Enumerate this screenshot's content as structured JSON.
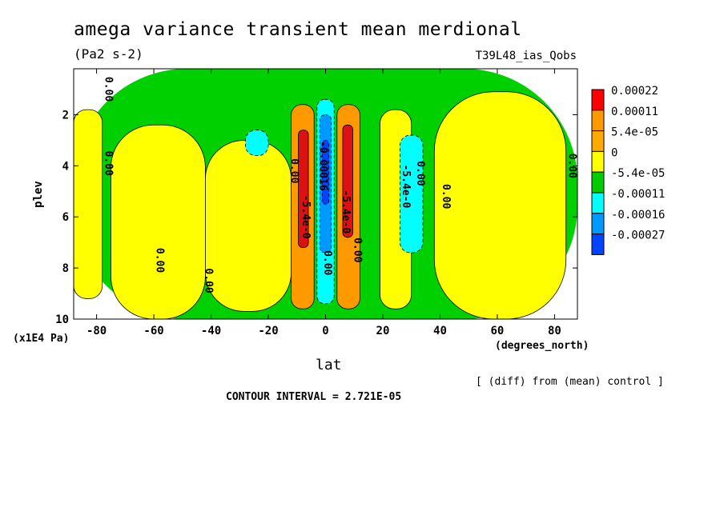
{
  "title": "amega variance transient mean merdional",
  "units": "(Pa2 s-2)",
  "run_label": "T39L48_ias_Qobs",
  "note": "[ (diff) from (mean) control ]",
  "contour_interval": "CONTOUR INTERVAL = 2.721E-05",
  "chart_data": {
    "type": "heatmap",
    "title": "amega variance transient mean merdional",
    "xlabel": "lat",
    "xunit": "(degrees_north)",
    "ylabel": "plev",
    "yunit": "(x1E4 Pa)",
    "xlim": [
      -88,
      88
    ],
    "ylim": [
      10,
      0.2
    ],
    "x_ticks": [
      -80,
      -60,
      -40,
      -20,
      0,
      20,
      40,
      60,
      80
    ],
    "y_ticks": [
      2,
      4,
      6,
      8,
      10
    ],
    "legend": {
      "placement": "right",
      "levels": [
        "0.00022",
        "0.00011",
        "5.4e-05",
        "0",
        "-5.4e-05",
        "-0.00011",
        "-0.00016",
        "-0.00027"
      ],
      "colors": [
        "#ff0000",
        "#ff9900",
        "#ffaa00",
        "#ffff00",
        "#00cc00",
        "#00ffff",
        "#0099ff",
        "#0044ff"
      ]
    },
    "shade_colors": {
      "red": "#dd1111",
      "orange": "#ff9900",
      "yellow": "#ffff00",
      "green": "#00d000",
      "cyan": "#00ffff",
      "lightblue": "#0099ff",
      "blue": "#0044ff"
    },
    "regions": [
      {
        "level": "green",
        "lat": [
          -88,
          88
        ],
        "plev": [
          0.2,
          10
        ]
      },
      {
        "level": "yellow",
        "lat": [
          -88,
          -78
        ],
        "plev": [
          1.8,
          9.2
        ]
      },
      {
        "level": "yellow",
        "lat": [
          -75,
          -42
        ],
        "plev": [
          2.4,
          10
        ]
      },
      {
        "level": "yellow",
        "lat": [
          -42,
          -12
        ],
        "plev": [
          3.0,
          9.7
        ]
      },
      {
        "level": "yellow",
        "lat": [
          19,
          30
        ],
        "plev": [
          1.8,
          9.6
        ]
      },
      {
        "level": "yellow",
        "lat": [
          38,
          84
        ],
        "plev": [
          1.1,
          10
        ]
      },
      {
        "level": "cyan",
        "lat": [
          -28,
          -20
        ],
        "plev": [
          2.6,
          3.6
        ]
      },
      {
        "level": "cyan",
        "lat": [
          26,
          34
        ],
        "plev": [
          2.8,
          7.4
        ]
      },
      {
        "level": "orange",
        "lat": [
          -12,
          -4
        ],
        "plev": [
          1.6,
          9.6
        ]
      },
      {
        "level": "orange",
        "lat": [
          4,
          12
        ],
        "plev": [
          1.6,
          9.6
        ]
      },
      {
        "level": "red",
        "lat": [
          -9.5,
          -6
        ],
        "plev": [
          2.6,
          7.2
        ]
      },
      {
        "level": "red",
        "lat": [
          6,
          9.5
        ],
        "plev": [
          2.4,
          6.8
        ]
      },
      {
        "level": "cyan",
        "lat": [
          -3,
          3
        ],
        "plev": [
          1.4,
          9.4
        ]
      },
      {
        "level": "lightblue",
        "lat": [
          -2,
          2
        ],
        "plev": [
          2.0,
          7.4
        ]
      },
      {
        "level": "blue",
        "lat": [
          -1.2,
          1.2
        ],
        "plev": [
          3.0,
          5.5
        ]
      }
    ],
    "contour_labels": [
      {
        "text": "0.00",
        "lat": -76,
        "plev": 1.0
      },
      {
        "text": "0.00",
        "lat": -76,
        "plev": 3.9
      },
      {
        "text": "0.00",
        "lat": -58,
        "plev": 7.7
      },
      {
        "text": "0.00",
        "lat": -41,
        "plev": 8.5
      },
      {
        "text": "0.00",
        "lat": -11,
        "plev": 4.2
      },
      {
        "text": "-5.4e-0",
        "lat": -7,
        "plev": 6.0
      },
      {
        "text": "-0.00016",
        "lat": -1,
        "plev": 4.0
      },
      {
        "text": "0.00",
        "lat": 0.5,
        "plev": 7.8
      },
      {
        "text": "-5.4e-0",
        "lat": 7,
        "plev": 5.8
      },
      {
        "text": "0.00",
        "lat": 11,
        "plev": 7.3
      },
      {
        "text": "-5.4e-0",
        "lat": 28,
        "plev": 4.8
      },
      {
        "text": "0.00",
        "lat": 33,
        "plev": 4.3
      },
      {
        "text": "0.00",
        "lat": 42,
        "plev": 5.2
      },
      {
        "text": "0.00",
        "lat": 86,
        "plev": 4.0
      }
    ]
  }
}
